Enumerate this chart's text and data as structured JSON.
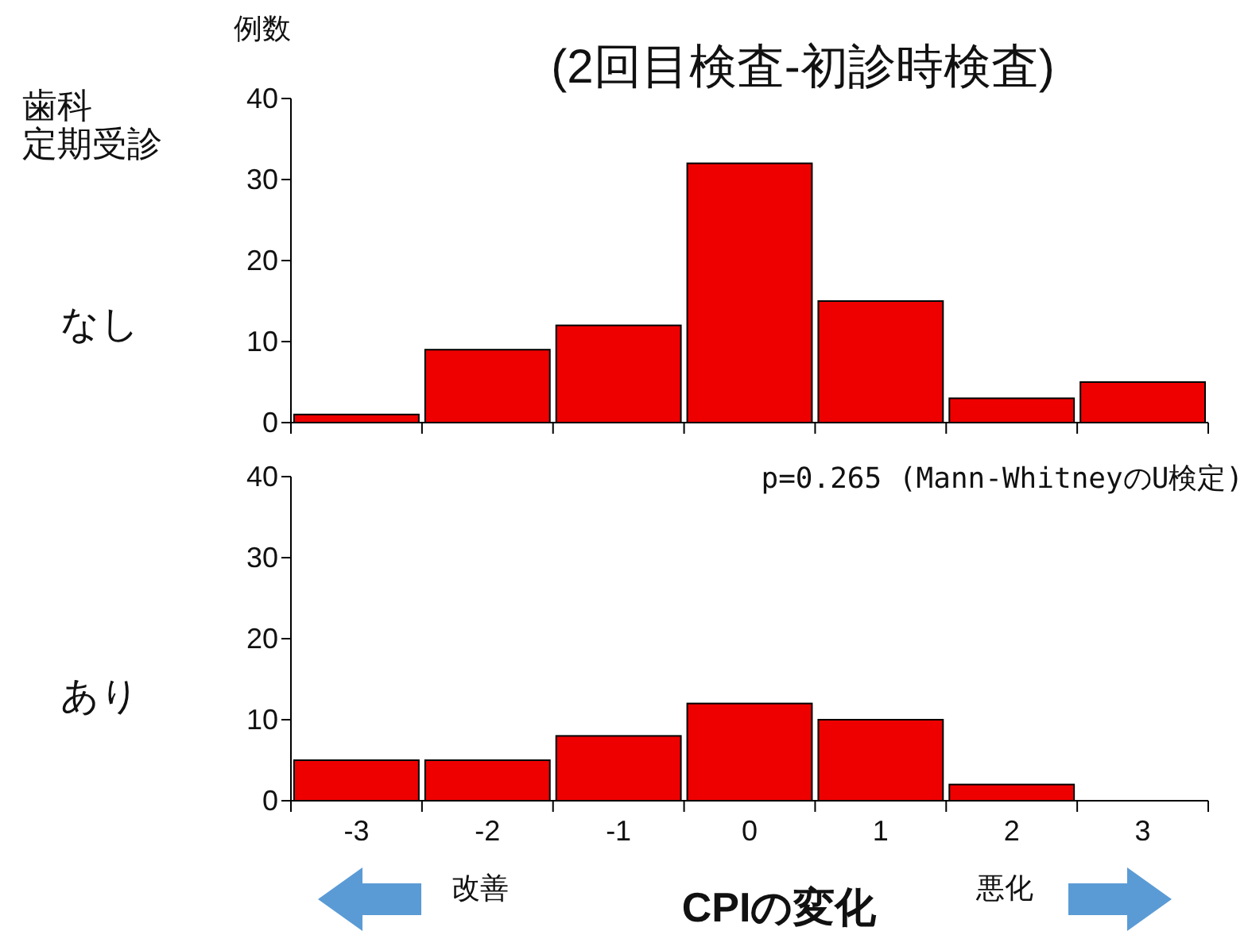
{
  "chart_data": [
    {
      "type": "bar",
      "title": "(2回目検査-初診時検査)",
      "ylabel": "例数",
      "categories": [
        null,
        null,
        null,
        null,
        null,
        null,
        null
      ],
      "values": [
        1,
        9,
        12,
        32,
        15,
        3,
        5
      ],
      "color": "#ee0000",
      "ylim": [
        0,
        40
      ],
      "yticks": [
        0,
        10,
        20,
        30,
        40
      ],
      "annotations": [
        "歯科",
        "定期受診",
        "なし"
      ]
    },
    {
      "type": "bar",
      "xlabel": "CPIの変化",
      "categories": [
        "-3",
        "-2",
        "-1",
        "0",
        "1",
        "2",
        "3"
      ],
      "values": [
        5,
        5,
        8,
        12,
        10,
        2,
        0
      ],
      "color": "#ee0000",
      "ylim": [
        0,
        40
      ],
      "yticks": [
        0,
        10,
        20,
        30,
        40
      ],
      "annotations": [
        "p=0.265 (Mann-WhitneyのU検定)",
        "あり",
        "改善",
        "悪化"
      ]
    }
  ]
}
